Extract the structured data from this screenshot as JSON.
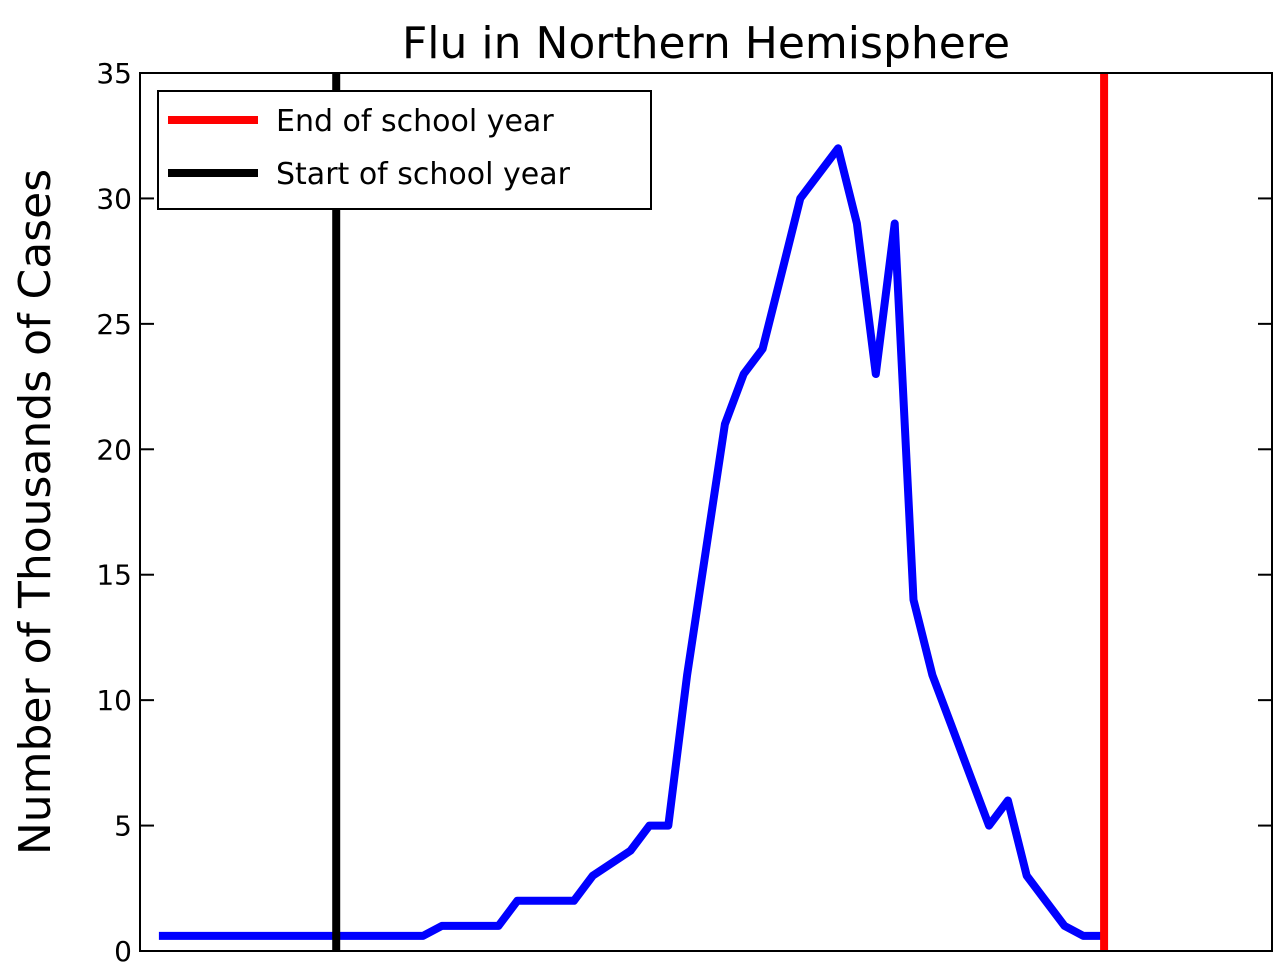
{
  "chart_data": {
    "type": "line",
    "title": "Flu in Northern Hemisphere",
    "xlabel": "",
    "ylabel": "Number of Thousands of Cases",
    "ylim": [
      0,
      35
    ],
    "xlim": [
      0,
      60
    ],
    "yticks": [
      0,
      5,
      10,
      15,
      20,
      25,
      30,
      35
    ],
    "grid": false,
    "legend_position": "top-left",
    "series": [
      {
        "color": "#0000ff",
        "x": [
          1,
          15,
          16,
          19,
          20,
          23,
          24,
          26,
          27,
          28,
          29,
          30,
          31,
          32,
          33,
          34,
          35,
          36,
          37,
          38,
          39,
          40,
          41,
          42,
          43,
          44,
          45,
          46,
          47,
          48,
          49,
          50,
          51
        ],
        "values": [
          0.6,
          0.6,
          1,
          1,
          2,
          2,
          3,
          4,
          5,
          5,
          11,
          16,
          21,
          23,
          24,
          27,
          30,
          31,
          32,
          29,
          23,
          29,
          14,
          11,
          9,
          7,
          5,
          6,
          3,
          2,
          1,
          0.6,
          0.6
        ]
      }
    ],
    "vlines": [
      {
        "name": "End of school year",
        "x": 51.1,
        "color": "#ff0000"
      },
      {
        "name": "Start of school year",
        "x": 10.4,
        "color": "#000000"
      }
    ]
  }
}
